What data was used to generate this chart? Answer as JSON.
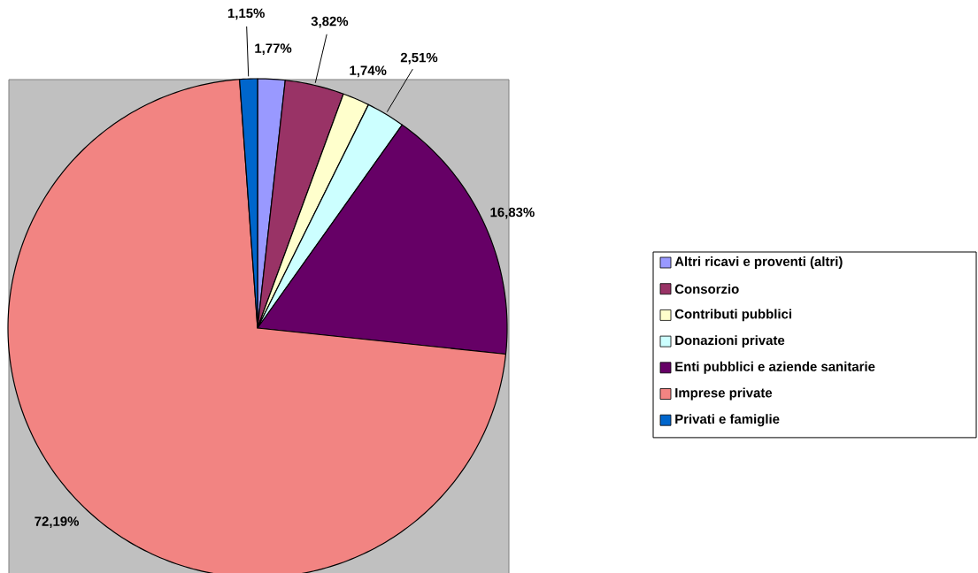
{
  "chart_data": {
    "type": "pie",
    "categories": [
      "Altri ricavi e proventi (altri)",
      "Consorzio",
      "Contributi pubblici",
      "Donazioni private",
      "Enti pubblici e aziende sanitarie",
      "Imprese private",
      "Privati e famiglie"
    ],
    "values": [
      1.77,
      3.82,
      1.74,
      2.51,
      16.83,
      72.19,
      1.15
    ],
    "value_labels": [
      "1,77%",
      "3,82%",
      "1,74%",
      "2,51%",
      "16,83%",
      "72,19%",
      "1,15%"
    ],
    "colors": [
      "#9999ff",
      "#993366",
      "#ffffcc",
      "#ccffff",
      "#660066",
      "#f28482",
      "#0066cc"
    ],
    "legend": "right"
  }
}
